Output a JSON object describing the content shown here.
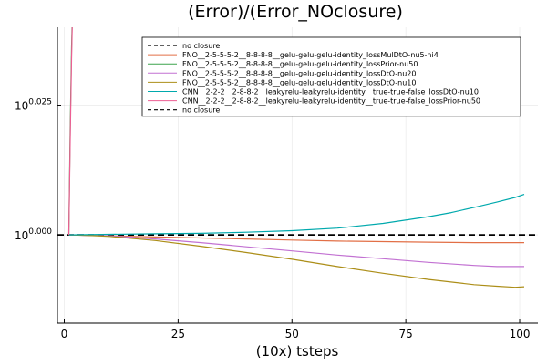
{
  "chart_data": {
    "type": "line",
    "title": "(Error)/(Error_NOclosure)",
    "xlabel": "(10x) tsteps",
    "ylabel": "",
    "xlim": [
      -1.5,
      104
    ],
    "ylim": [
      -0.017,
      0.04
    ],
    "x_ticks": [
      {
        "value": 0,
        "label": "0"
      },
      {
        "value": 25,
        "label": "25"
      },
      {
        "value": 50,
        "label": "50"
      },
      {
        "value": 75,
        "label": "75"
      },
      {
        "value": 100,
        "label": "100"
      }
    ],
    "y_ticks": [
      {
        "value": 0.0,
        "base": "10",
        "exp": "0.000"
      },
      {
        "value": 0.025,
        "base": "10",
        "exp": "0.025"
      }
    ],
    "grid": true,
    "legend_position": "top-right",
    "series": [
      {
        "name": "no closure",
        "color": "#000000",
        "dash": true,
        "x": [
          -1.5,
          104
        ],
        "y": [
          0,
          0
        ]
      },
      {
        "name": "FNO__2-5-5-5-2__8-8-8-8__gelu-gelu-gelu-identity_lossMulDtO-nu5-ni4",
        "color": "#e26f46",
        "dash": false,
        "x": [
          1,
          2,
          5,
          10,
          20,
          30,
          40,
          50,
          60,
          70,
          80,
          90,
          95,
          101
        ],
        "y": [
          0,
          0,
          -0.0001,
          -0.0002,
          -0.0004,
          -0.0006,
          -0.0008,
          -0.001,
          -0.0012,
          -0.0013,
          -0.0014,
          -0.0015,
          -0.0015,
          -0.0015
        ]
      },
      {
        "name": "FNO__2-5-5-5-2__8-8-8-8__gelu-gelu-gelu-identity_lossPrior-nu50",
        "color": "#3da44d",
        "dash": false,
        "x": [
          1,
          1.3,
          1.6,
          2
        ],
        "y": [
          0,
          0.02,
          0.036,
          0.05
        ]
      },
      {
        "name": "FNO__2-5-5-5-2__8-8-8-8__gelu-gelu-gelu-identity_lossDtO-nu20",
        "color": "#c271d2",
        "dash": false,
        "x": [
          1,
          5,
          10,
          20,
          30,
          40,
          50,
          60,
          70,
          80,
          90,
          95,
          101
        ],
        "y": [
          0,
          -0.0001,
          -0.0002,
          -0.0008,
          -0.0015,
          -0.0023,
          -0.0031,
          -0.0039,
          -0.0046,
          -0.0053,
          -0.0059,
          -0.0061,
          -0.0061
        ]
      },
      {
        "name": "FNO__2-5-5-5-2__8-8-8-8__gelu-gelu-gelu-identity_lossDtO-nu10",
        "color": "#ac8e18",
        "dash": false,
        "x": [
          1,
          5,
          10,
          20,
          30,
          40,
          50,
          60,
          70,
          80,
          90,
          95,
          99,
          101
        ],
        "y": [
          0,
          -0.0001,
          -0.0003,
          -0.0011,
          -0.0022,
          -0.0034,
          -0.0047,
          -0.0061,
          -0.0074,
          -0.0086,
          -0.0096,
          -0.0099,
          -0.0101,
          -0.01
        ]
      },
      {
        "name": "CNN__2-2-2__2-8-8-2__leakyrelu-leakyrelu-identity__true-true-false_lossDtO-nu10",
        "color": "#00a9ad",
        "dash": false,
        "x": [
          1,
          10,
          20,
          30,
          40,
          50,
          60,
          70,
          80,
          85,
          90,
          95,
          99,
          101
        ],
        "y": [
          0,
          0.0001,
          0.0002,
          0.0003,
          0.0005,
          0.0008,
          0.0013,
          0.0022,
          0.0035,
          0.0043,
          0.0053,
          0.0063,
          0.0072,
          0.0078
        ]
      },
      {
        "name": "CNN__2-2-2__2-8-8-2__leakyrelu-leakyrelu-identity__true-true-false_lossPrior-nu50",
        "color": "#ed5e93",
        "dash": false,
        "x": [
          1,
          1.3,
          1.6,
          2
        ],
        "y": [
          0,
          0.018,
          0.034,
          0.05
        ]
      },
      {
        "name": "no closure",
        "color": "#000000",
        "dash": true,
        "x": [],
        "y": []
      }
    ]
  }
}
